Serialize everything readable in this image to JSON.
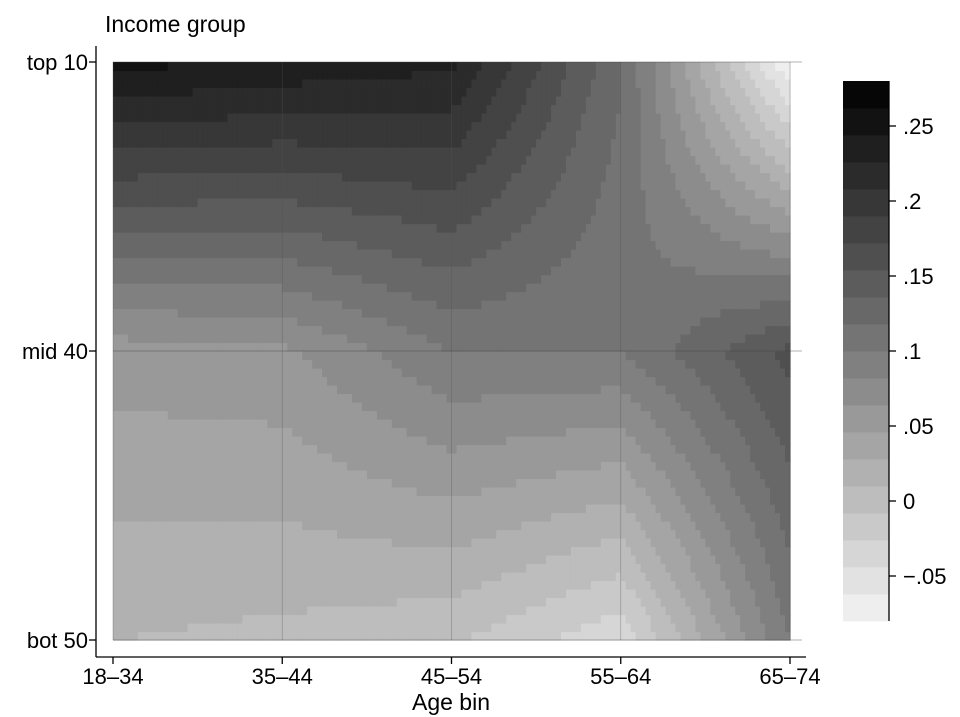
{
  "chart_data": {
    "type": "heatmap",
    "title": "",
    "xlabel": "Age bin",
    "ylabel": "Income group",
    "x_categories": [
      "18–34",
      "35–44",
      "45–54",
      "55–64",
      "65–74"
    ],
    "y_categories": [
      "bot 50",
      "mid 40",
      "top 10"
    ],
    "values": [
      [
        0.01,
        0.005,
        -0.005,
        -0.04,
        0.1
      ],
      [
        0.055,
        0.06,
        0.1,
        0.1,
        0.16
      ],
      [
        0.25,
        0.24,
        0.23,
        0.12,
        -0.08
      ]
    ],
    "colorbar": {
      "range": [
        -0.08,
        0.28
      ],
      "ticks": [
        -0.05,
        0,
        0.05,
        0.1,
        0.15,
        0.2,
        0.25
      ],
      "tick_labels": [
        "−.05",
        "0",
        ".05",
        ".1",
        ".15",
        ".2",
        ".25"
      ],
      "levels": 20,
      "colormap": "grayscale, white (low) to black (high)"
    },
    "grid": true
  }
}
